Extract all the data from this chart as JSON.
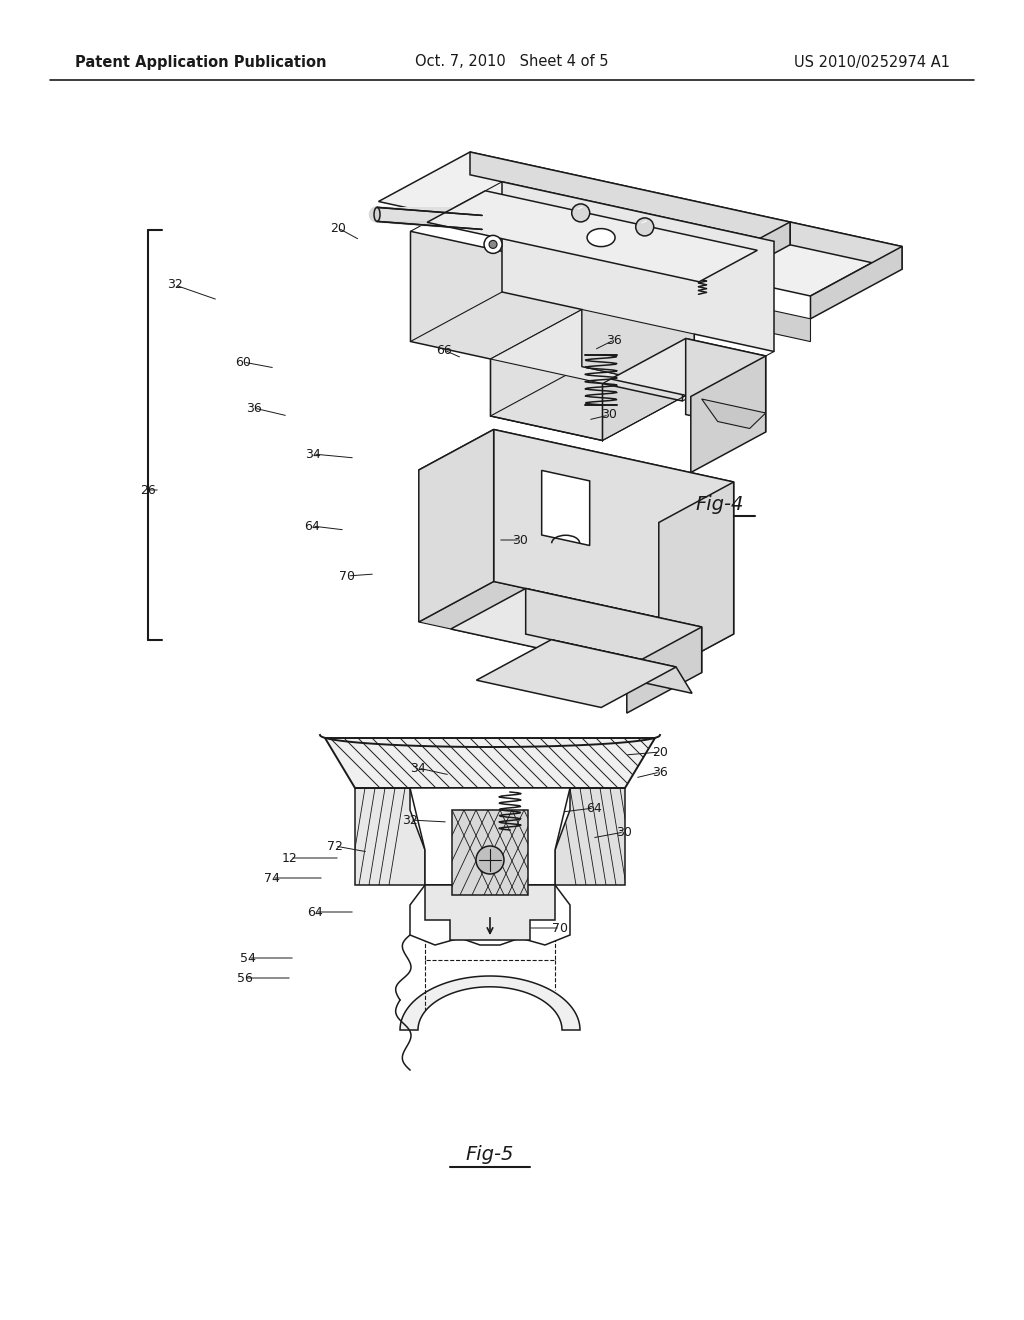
{
  "background_color": "#ffffff",
  "header_left": "Patent Application Publication",
  "header_center": "Oct. 7, 2010   Sheet 4 of 5",
  "header_right": "US 2010/0252974 A1",
  "fig4_label": "Fig-4",
  "fig5_label": "Fig-5",
  "line_color": "#1a1a1a",
  "light_gray": "#e8e8e8",
  "mid_gray": "#cccccc",
  "dark_gray": "#aaaaaa",
  "hatch_color": "#555555"
}
